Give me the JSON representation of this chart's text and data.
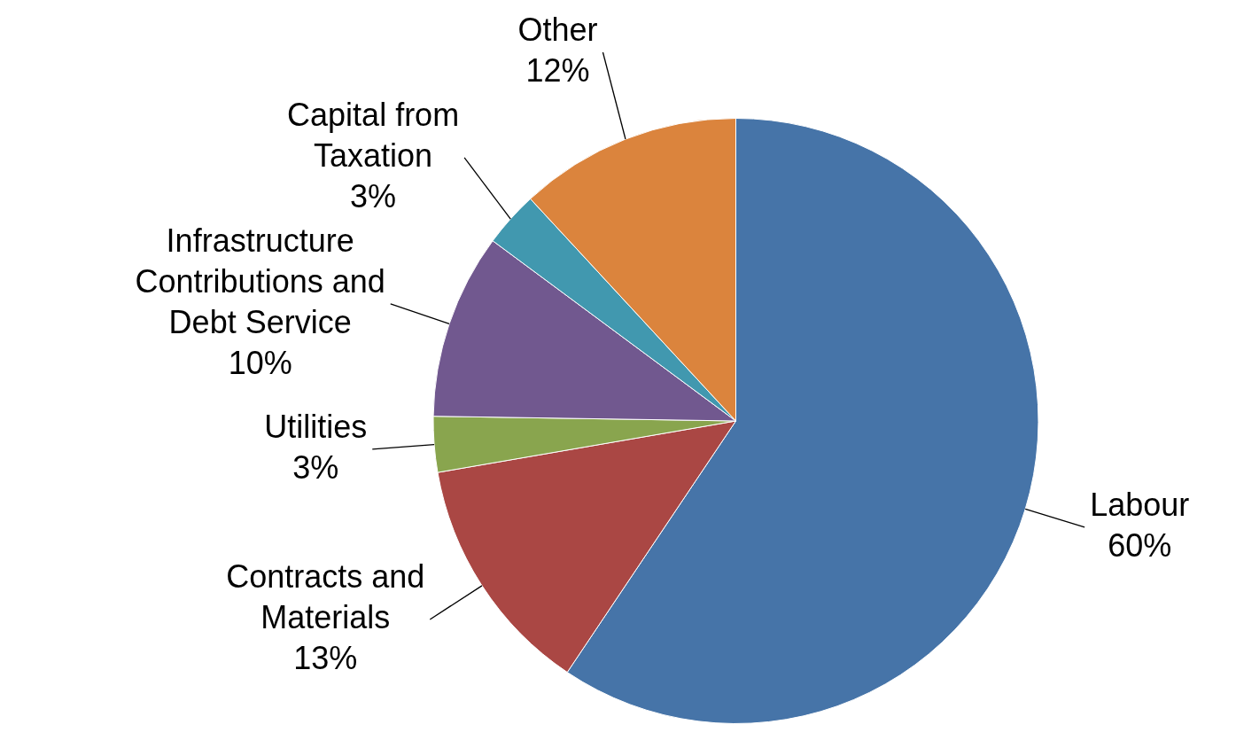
{
  "chart_data": {
    "type": "pie",
    "categories": [
      "Labour",
      "Contracts and Materials",
      "Utilities",
      "Infrastructure Contributions and Debt Service",
      "Capital from Taxation",
      "Other"
    ],
    "values": [
      60,
      13,
      3,
      10,
      3,
      12
    ],
    "colors": [
      "#4674a8",
      "#aa4744",
      "#89a54e",
      "#71588f",
      "#4198af",
      "#db843d"
    ],
    "value_labels": [
      "60%",
      "13%",
      "3%",
      "10%",
      "3%",
      "12%"
    ],
    "legend": false
  }
}
